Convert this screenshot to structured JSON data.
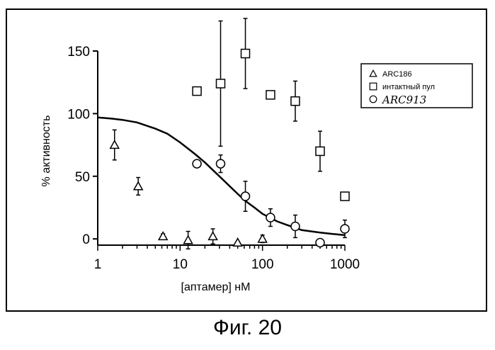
{
  "caption": "Фиг. 20",
  "chart_data": {
    "type": "scatter",
    "xscale": "log",
    "xlim": [
      1,
      1000
    ],
    "ylim": [
      -5,
      150
    ],
    "xlabel": "[аптамер] нМ",
    "ylabel": "% активность",
    "x_ticks": [
      1,
      10,
      100,
      1000
    ],
    "x_tick_labels": [
      "1",
      "10",
      "100",
      "1000"
    ],
    "y_ticks": [
      0,
      50,
      100,
      150
    ],
    "y_tick_labels": [
      "0",
      "50",
      "100",
      "150"
    ],
    "legend_position": "right",
    "series": [
      {
        "name": "ARC186",
        "marker": "triangle",
        "x": [
          1.6,
          3.1,
          6.2,
          12.5,
          25,
          50,
          100
        ],
        "y": [
          75,
          42,
          2,
          -1,
          2,
          -3,
          0
        ],
        "err": [
          12,
          7,
          2,
          7,
          6,
          0,
          3
        ]
      },
      {
        "name": "интактный пул",
        "marker": "square",
        "x": [
          16,
          31,
          62,
          125,
          250,
          500,
          1000
        ],
        "y": [
          118,
          124,
          148,
          115,
          110,
          70,
          34
        ],
        "err": [
          0,
          50,
          28,
          0,
          16,
          16,
          0
        ]
      },
      {
        "name": "ARC913",
        "marker": "circle",
        "x": [
          16,
          31,
          62,
          125,
          250,
          500,
          1000
        ],
        "y": [
          60,
          60,
          34,
          17,
          10,
          -3,
          8
        ],
        "err": [
          0,
          7,
          12,
          7,
          9,
          0,
          7
        ]
      }
    ],
    "fit_curve": {
      "series": "ARC913",
      "x": [
        1,
        1.5,
        2,
        3,
        5,
        7,
        10,
        15,
        20,
        30,
        40,
        60,
        80,
        100,
        150,
        200,
        300,
        500,
        700,
        1000
      ],
      "y": [
        97,
        96,
        95,
        93,
        88,
        84,
        77,
        68,
        61,
        50,
        42,
        31,
        25,
        20,
        14,
        11,
        7,
        5,
        4,
        3
      ]
    }
  }
}
